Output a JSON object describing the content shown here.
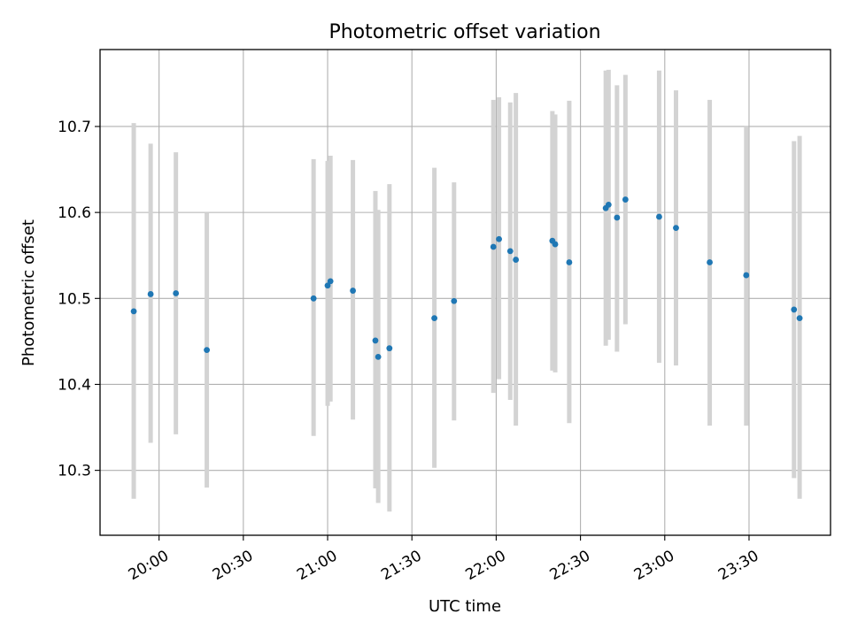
{
  "chart_data": {
    "type": "scatter",
    "title": "Photometric offset variation",
    "xlabel": "UTC time",
    "ylabel": "Photometric offset",
    "x_unit": "UTC",
    "xlim": [
      "19:39",
      "23:59"
    ],
    "ylim": [
      0.2245,
      0.7895
    ],
    "y_display_offset": 10.0,
    "grid": true,
    "x_ticks": [
      "20:00",
      "20:30",
      "21:00",
      "21:30",
      "22:00",
      "22:30",
      "23:00",
      "23:30"
    ],
    "y_ticks": [
      "10.3",
      "10.4",
      "10.5",
      "10.6",
      "10.7"
    ],
    "y_tick_values": [
      0.3,
      0.4,
      0.5,
      0.6,
      0.7
    ],
    "marker_color": "#1f77b4",
    "errorbar_color": "#d3d3d3",
    "points": [
      {
        "x": "19:51",
        "y": 0.485,
        "lo": 0.267,
        "hi": 0.704
      },
      {
        "x": "19:57",
        "y": 0.505,
        "lo": 0.332,
        "hi": 0.68
      },
      {
        "x": "20:06",
        "y": 0.506,
        "lo": 0.342,
        "hi": 0.67
      },
      {
        "x": "20:17",
        "y": 0.44,
        "lo": 0.28,
        "hi": 0.6
      },
      {
        "x": "20:55",
        "y": 0.5,
        "lo": 0.34,
        "hi": 0.662
      },
      {
        "x": "21:00",
        "y": 0.515,
        "lo": 0.375,
        "hi": 0.66
      },
      {
        "x": "21:01",
        "y": 0.52,
        "lo": 0.38,
        "hi": 0.666
      },
      {
        "x": "21:09",
        "y": 0.509,
        "lo": 0.359,
        "hi": 0.661
      },
      {
        "x": "21:17",
        "y": 0.451,
        "lo": 0.279,
        "hi": 0.625
      },
      {
        "x": "21:18",
        "y": 0.432,
        "lo": 0.262,
        "hi": 0.603
      },
      {
        "x": "21:22",
        "y": 0.442,
        "lo": 0.252,
        "hi": 0.633
      },
      {
        "x": "21:38",
        "y": 0.477,
        "lo": 0.303,
        "hi": 0.652
      },
      {
        "x": "21:45",
        "y": 0.497,
        "lo": 0.358,
        "hi": 0.635
      },
      {
        "x": "21:59",
        "y": 0.56,
        "lo": 0.39,
        "hi": 0.731
      },
      {
        "x": "22:01",
        "y": 0.569,
        "lo": 0.406,
        "hi": 0.734
      },
      {
        "x": "22:05",
        "y": 0.555,
        "lo": 0.382,
        "hi": 0.728
      },
      {
        "x": "22:07",
        "y": 0.545,
        "lo": 0.352,
        "hi": 0.739
      },
      {
        "x": "22:20",
        "y": 0.567,
        "lo": 0.416,
        "hi": 0.718
      },
      {
        "x": "22:21",
        "y": 0.563,
        "lo": 0.414,
        "hi": 0.714
      },
      {
        "x": "22:26",
        "y": 0.542,
        "lo": 0.355,
        "hi": 0.73
      },
      {
        "x": "22:39",
        "y": 0.605,
        "lo": 0.445,
        "hi": 0.765
      },
      {
        "x": "22:40",
        "y": 0.609,
        "lo": 0.452,
        "hi": 0.766
      },
      {
        "x": "22:43",
        "y": 0.594,
        "lo": 0.438,
        "hi": 0.748
      },
      {
        "x": "22:46",
        "y": 0.615,
        "lo": 0.47,
        "hi": 0.76
      },
      {
        "x": "22:58",
        "y": 0.595,
        "lo": 0.425,
        "hi": 0.765
      },
      {
        "x": "23:04",
        "y": 0.582,
        "lo": 0.422,
        "hi": 0.742
      },
      {
        "x": "23:16",
        "y": 0.542,
        "lo": 0.352,
        "hi": 0.731
      },
      {
        "x": "23:29",
        "y": 0.527,
        "lo": 0.352,
        "hi": 0.701
      },
      {
        "x": "23:46",
        "y": 0.487,
        "lo": 0.291,
        "hi": 0.683
      },
      {
        "x": "23:48",
        "y": 0.477,
        "lo": 0.267,
        "hi": 0.689
      }
    ]
  }
}
